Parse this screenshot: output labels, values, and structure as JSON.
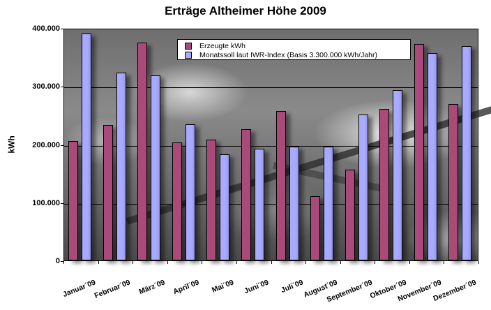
{
  "chart_data": {
    "type": "bar",
    "title": "Erträge Altheimer Höhe 2009",
    "xlabel": "",
    "ylabel": "kWh",
    "ylim": [
      0,
      400000
    ],
    "yticks": [
      "0",
      "100.000",
      "200.000",
      "300.000",
      "400.000"
    ],
    "grid": true,
    "legend_position": "top-center-inside",
    "categories": [
      "Januar´09",
      "Februar´09",
      "März´09",
      "April´09",
      "Mai´09",
      "Juni´09",
      "Juli´09",
      "August´09",
      "September´09",
      "Oktober´09",
      "November´09",
      "Dezember´09"
    ],
    "series": [
      {
        "name": "Erzeugte kWh",
        "color": "#aa4a78",
        "values": [
          205000,
          233000,
          375000,
          203000,
          208000,
          226000,
          257000,
          110000,
          156000,
          261000,
          372000,
          269000
        ]
      },
      {
        "name": "Monatssoll laut IWR-Index (Basis 3.300.000 kWh/Jahr)",
        "color": "#a8aaff",
        "values": [
          390000,
          323000,
          318000,
          234000,
          183000,
          192000,
          196000,
          196000,
          251000,
          293000,
          357000,
          369000
        ]
      }
    ]
  }
}
